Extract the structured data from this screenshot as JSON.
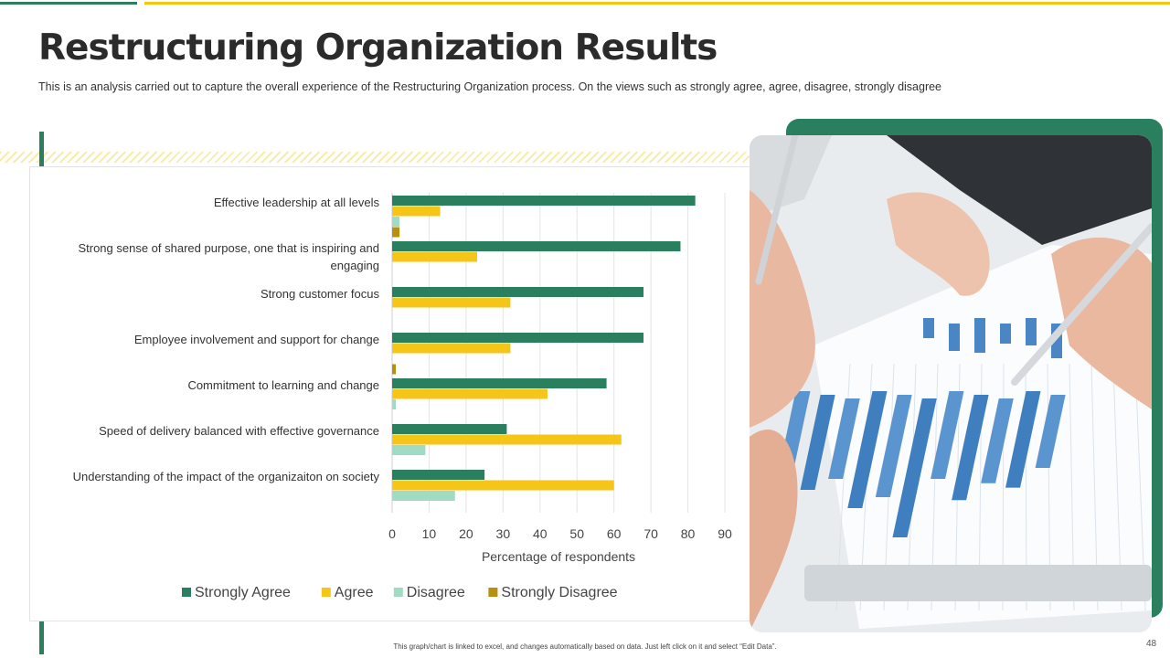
{
  "slide": {
    "title": "Restructuring Organization Results",
    "subtitle": "This is an analysis carried out to capture the overall experience of the Restructuring Organization process. On the views such as strongly agree, agree, disagree, strongly disagree",
    "footnote": "This graph/chart is linked to excel, and changes automatically based on data. Just left click on it and select “Edit Data”.",
    "page_number": "48"
  },
  "colors": {
    "accent_green": "#2a7f5f",
    "accent_yellow": "#f5c518"
  },
  "chart_data": {
    "type": "bar",
    "orientation": "horizontal",
    "categories": [
      "Effective leadership at all levels",
      "Strong sense of shared purpose, one that is inspiring and engaging",
      "Strong customer focus",
      "Employee involvement and support for change",
      "Commitment to learning and change",
      "Speed of delivery balanced with effective governance",
      "Understanding of the impact of the organizaiton on society"
    ],
    "series": [
      {
        "name": "Strongly Agree",
        "color": "#2a7f5f",
        "values": [
          82,
          78,
          68,
          68,
          58,
          31,
          25
        ]
      },
      {
        "name": "Agree",
        "color": "#f5c518",
        "values": [
          13,
          23,
          32,
          32,
          42,
          62,
          60
        ]
      },
      {
        "name": "Disagree",
        "color": "#9fdcc3",
        "values": [
          2,
          0,
          0,
          0,
          1,
          9,
          17
        ]
      },
      {
        "name": "Strongly Disagree",
        "color": "#b8900f",
        "values": [
          2,
          0,
          0,
          1,
          0,
          0,
          0
        ]
      }
    ],
    "xlabel": "Percentage of respondents",
    "xlim": [
      0,
      90
    ],
    "xticks": [
      0,
      10,
      20,
      30,
      40,
      50,
      60,
      70,
      80,
      90
    ],
    "grid": true,
    "legend_position": "bottom"
  },
  "photo": {
    "bars": [
      {
        "value": 0.5,
        "tone": "#5b95cf"
      },
      {
        "value": 0.65,
        "tone": "#3f7fc0"
      },
      {
        "value": 0.55,
        "tone": "#5b95cf"
      },
      {
        "value": 0.8,
        "tone": "#3f7fc0"
      },
      {
        "value": 0.7,
        "tone": "#5b95cf"
      },
      {
        "value": 0.95,
        "tone": "#3f7fc0"
      },
      {
        "value": 0.6,
        "tone": "#5b95cf"
      },
      {
        "value": 0.72,
        "tone": "#3f7fc0"
      },
      {
        "value": 0.58,
        "tone": "#5b95cf"
      },
      {
        "value": 0.66,
        "tone": "#3f7fc0"
      },
      {
        "value": 0.5,
        "tone": "#5b95cf"
      }
    ]
  }
}
